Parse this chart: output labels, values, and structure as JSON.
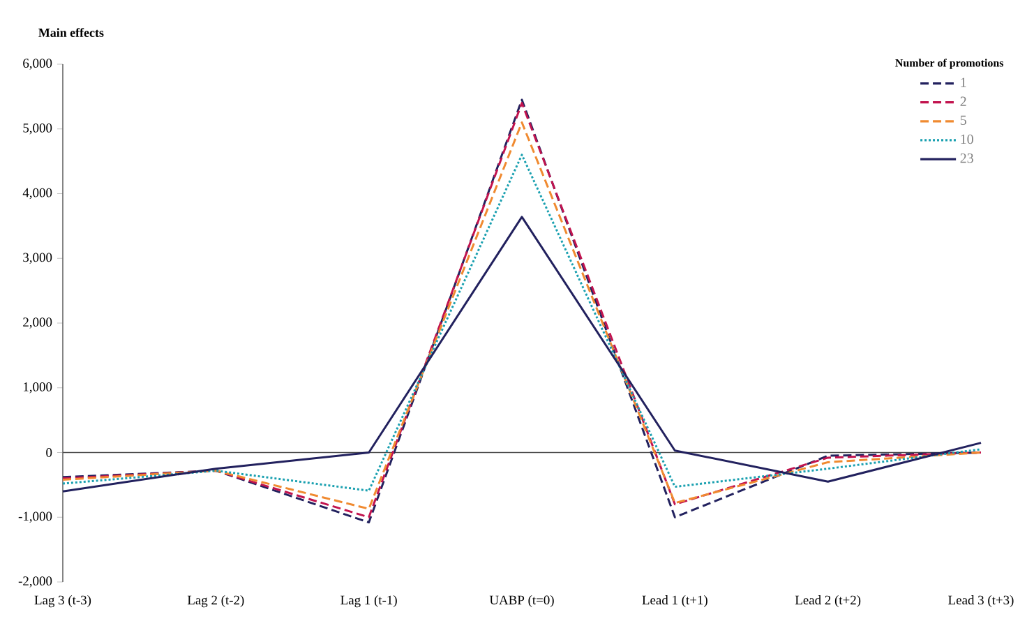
{
  "chart_data": {
    "type": "line",
    "ylabel": "Main effects",
    "legend_title": "Number of promotions",
    "categories": [
      "Lag 3 (t-3)",
      "Lag 2 (t-2)",
      "Lag 1 (t-1)",
      "UABP (t=0)",
      "Lead 1 (t+1)",
      "Lead 2 (t+2)",
      "Lead 3 (t+3)"
    ],
    "series": [
      {
        "name": "1",
        "color": "#22215e",
        "line_style": "dashed",
        "values": [
          -380,
          -280,
          -1080,
          5450,
          -1000,
          -50,
          0
        ]
      },
      {
        "name": "2",
        "color": "#c2134e",
        "line_style": "dashed",
        "values": [
          -400,
          -280,
          -1000,
          5400,
          -800,
          -80,
          0
        ]
      },
      {
        "name": "5",
        "color": "#f08a30",
        "line_style": "dashed",
        "values": [
          -420,
          -280,
          -870,
          5100,
          -780,
          -150,
          0
        ]
      },
      {
        "name": "10",
        "color": "#1aa0b0",
        "line_style": "dotted",
        "values": [
          -480,
          -280,
          -590,
          4600,
          -530,
          -250,
          50
        ]
      },
      {
        "name": "23",
        "color": "#22215e",
        "line_style": "solid",
        "values": [
          -600,
          -250,
          0,
          3640,
          30,
          -450,
          150
        ]
      }
    ],
    "ylim": [
      -2000,
      6000
    ],
    "yticks": [
      {
        "value": -2000,
        "label": "-2,000"
      },
      {
        "value": -1000,
        "label": "-1,000"
      },
      0,
      {
        "value": 1000,
        "label": "1,000"
      },
      {
        "value": 2000,
        "label": "2,000"
      },
      {
        "value": 3000,
        "label": "3,000"
      },
      {
        "value": 4000,
        "label": "4,000"
      },
      {
        "value": 5000,
        "label": "5,000"
      },
      {
        "value": 6000,
        "label": "6,000"
      }
    ],
    "legend": "top right",
    "marker": "none"
  }
}
